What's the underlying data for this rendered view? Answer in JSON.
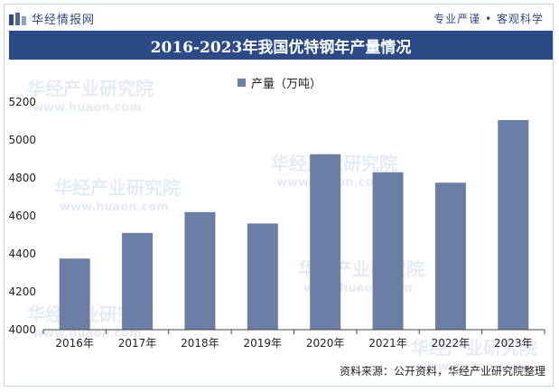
{
  "header": {
    "brand": "华经情报网",
    "tagline": "专业严谨 • 客观科学"
  },
  "chart_data": {
    "type": "bar",
    "title": "2016-2023年我国优特钢年产量情况",
    "categories": [
      "2016年",
      "2017年",
      "2018年",
      "2019年",
      "2020年",
      "2021年",
      "2022年",
      "2023年"
    ],
    "series": [
      {
        "name": "产量（万吨）",
        "values": [
          4375,
          4510,
          4620,
          4560,
          4925,
          4830,
          4775,
          5105
        ]
      }
    ],
    "ylim": [
      4000,
      5200
    ],
    "yticks": [
      4000,
      4200,
      4400,
      4600,
      4800,
      5000,
      5200
    ],
    "legend_position": "top-center",
    "grid": false,
    "bar_color": "#6b7fa5"
  },
  "watermarks": [
    "华经产业研究院",
    "www.huaon.com"
  ],
  "footer": {
    "source": "资料来源：公开资料，华经产业研究院整理"
  }
}
